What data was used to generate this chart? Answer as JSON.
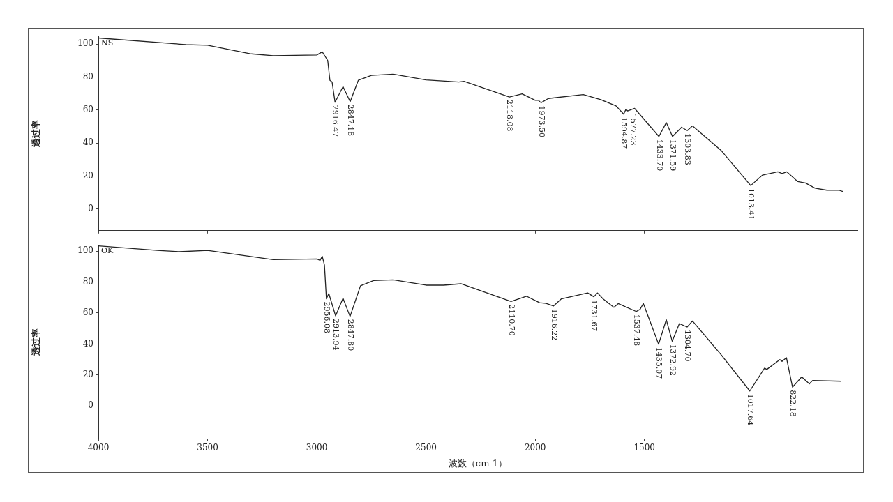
{
  "chart_data": [
    {
      "type": "line",
      "ylabel": "透过率",
      "xlim": [
        4000,
        525
      ],
      "xticks": [
        4000,
        3500,
        3000,
        2500,
        2000,
        1500
      ],
      "ylim": [
        -13,
        105
      ],
      "yticks": [
        0,
        20,
        40,
        60,
        80,
        100
      ],
      "grid": false,
      "legend": false,
      "tick_labels": "y",
      "marker": "none",
      "line_style": "solid",
      "x": [
        4000,
        3600,
        3500,
        3300,
        3200,
        3000,
        2975,
        2950,
        2940,
        2930,
        2916.47,
        2880,
        2847.18,
        2810,
        2750,
        2650,
        2500,
        2350,
        2326,
        2118.08,
        2060,
        2000,
        1985,
        1973.5,
        1940,
        1780,
        1700,
        1630,
        1594.87,
        1585,
        1577.23,
        1545,
        1433.7,
        1400,
        1371.59,
        1330,
        1303.83,
        1280,
        1150,
        1013.41,
        960,
        889,
        870,
        848,
        798,
        763,
        719,
        665,
        610,
        592
      ],
      "series": [
        {
          "name": "NS",
          "color": "#222222",
          "values": [
            103.6,
            99.6,
            99.2,
            94,
            92.9,
            93.3,
            95.2,
            90,
            78,
            77,
            64.7,
            74.2,
            65.1,
            78,
            81,
            81.7,
            78.2,
            77,
            77.4,
            67.9,
            69.8,
            65.9,
            65.9,
            64.4,
            67,
            69.4,
            66.3,
            62.5,
            57.5,
            60.5,
            59.5,
            61,
            44,
            52.4,
            44,
            49.6,
            47.6,
            50.4,
            35.7,
            14.3,
            20.6,
            22.6,
            21.6,
            22.6,
            16.7,
            15.9,
            12.7,
            11.5,
            11.5,
            10.7
          ]
        }
      ],
      "annotations": [
        {
          "text": "2916.47",
          "x": 2916.47,
          "y": 64.7
        },
        {
          "text": "2847.18",
          "x": 2847.18,
          "y": 65.1
        },
        {
          "text": "2118.08",
          "x": 2118.08,
          "y": 67.9
        },
        {
          "text": "1973.50",
          "x": 1973.5,
          "y": 64.4
        },
        {
          "text": "1594.87",
          "x": 1594.87,
          "y": 57.5
        },
        {
          "text": "1577.23",
          "x": 1577.23,
          "y": 59.5
        },
        {
          "text": "1433.70",
          "x": 1433.7,
          "y": 44
        },
        {
          "text": "1371.59",
          "x": 1371.59,
          "y": 44
        },
        {
          "text": "1303.83",
          "x": 1303.83,
          "y": 47.6
        },
        {
          "text": "1013.41",
          "x": 1013.41,
          "y": 14.3
        }
      ]
    },
    {
      "type": "line",
      "xlabel": "波数（cm-1）",
      "ylabel": "透过率",
      "xlim": [
        4000,
        525
      ],
      "xticks": [
        4000,
        3500,
        3000,
        2500,
        2000,
        1500
      ],
      "ylim": [
        -21,
        104
      ],
      "yticks": [
        0,
        20,
        40,
        60,
        80,
        100
      ],
      "grid": false,
      "legend": false,
      "marker": "none",
      "line_style": "solid",
      "x": [
        4000,
        3730,
        3630,
        3500,
        3200,
        3000,
        2985,
        2975,
        2965,
        2956.08,
        2945,
        2913.94,
        2880,
        2847.8,
        2800,
        2740,
        2650,
        2500,
        2420,
        2340,
        2110.7,
        2040,
        1980,
        1950,
        1916.22,
        1880,
        1760,
        1731.67,
        1715,
        1690,
        1640,
        1620,
        1537.48,
        1520,
        1505,
        1435.07,
        1400,
        1372.92,
        1340,
        1304.7,
        1280,
        1150,
        1017.64,
        950,
        940,
        880,
        870,
        850,
        822.18,
        780,
        745,
        730,
        600
      ],
      "series": [
        {
          "name": "OK",
          "color": "#222222",
          "values": [
            103.4,
            100.4,
            99.6,
            100.4,
            94.5,
            94.9,
            94,
            96.6,
            91,
            69.2,
            72.6,
            58.2,
            69.6,
            57.8,
            77.6,
            81,
            81.4,
            78,
            78,
            78.9,
            67.5,
            70.9,
            66.7,
            66.2,
            64.6,
            69.2,
            73,
            70.5,
            73,
            69.2,
            63.7,
            66.1,
            61,
            62.4,
            66.2,
            39.9,
            55.7,
            41.8,
            53.2,
            51,
            54.9,
            33.3,
            9.7,
            24.5,
            23.6,
            30,
            28.8,
            31.2,
            12.2,
            18.8,
            14.3,
            16.5,
            16
          ]
        }
      ],
      "annotations": [
        {
          "text": "2956.08",
          "x": 2956.08,
          "y": 69.2
        },
        {
          "text": "2913.94",
          "x": 2913.94,
          "y": 58.2
        },
        {
          "text": "2847.80",
          "x": 2847.8,
          "y": 57.8
        },
        {
          "text": "2110.70",
          "x": 2110.7,
          "y": 67.5
        },
        {
          "text": "1916.22",
          "x": 1916.22,
          "y": 64.6
        },
        {
          "text": "1731.67",
          "x": 1731.67,
          "y": 70.5
        },
        {
          "text": "1537.48",
          "x": 1537.48,
          "y": 61
        },
        {
          "text": "1435.07",
          "x": 1435.07,
          "y": 39.9
        },
        {
          "text": "1372.92",
          "x": 1372.92,
          "y": 41.8
        },
        {
          "text": "1304.70",
          "x": 1304.7,
          "y": 51
        },
        {
          "text": "1017.64",
          "x": 1017.64,
          "y": 9.7
        },
        {
          "text": "822.18",
          "x": 822.18,
          "y": 12.2
        }
      ]
    }
  ]
}
